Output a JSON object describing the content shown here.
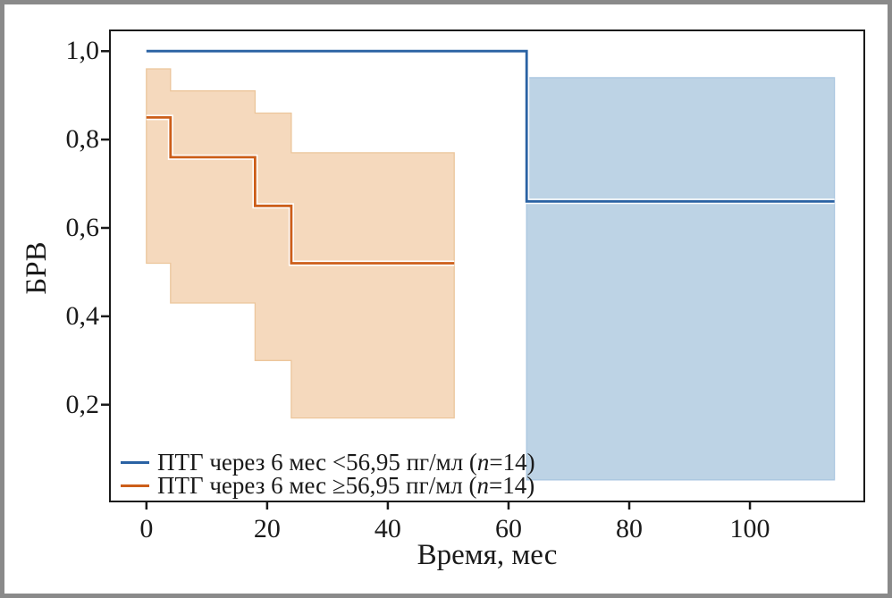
{
  "figure": {
    "frame_color": "#8a8a8a",
    "background": "#ffffff",
    "axes_line_color": "#1a1a1a"
  },
  "chart_data": {
    "type": "line",
    "subtype": "kaplan-meier-step-with-confidence-bands",
    "title": "",
    "xlabel": "Время, мес",
    "ylabel": "БРВ",
    "xlim": [
      -5.9,
      118.8
    ],
    "ylim": [
      -0.017,
      1.045
    ],
    "grid": false,
    "legend_position": "lower-left",
    "xticks": [
      0,
      20,
      40,
      60,
      80,
      100
    ],
    "xtick_labels": [
      "0",
      "20",
      "40",
      "60",
      "80",
      "100"
    ],
    "yticks": [
      0.2,
      0.4,
      0.6,
      0.8,
      1.0
    ],
    "ytick_labels": [
      "0,2",
      "0,4",
      "0,6",
      "0,8",
      "1,0"
    ],
    "series": [
      {
        "name": "ПТГ через 6 мес <56,95 пг/мл (n=14)",
        "n": 14,
        "color": "#2a62a3",
        "band_color": "#bdd3e5",
        "band_edge_color": "#a9c6e0",
        "step_x": [
          0,
          63,
          114
        ],
        "step_y": [
          1.0,
          0.66,
          0.66
        ],
        "band": {
          "x": [
            63,
            114
          ],
          "upper": [
            0.94,
            0.94
          ],
          "lower": [
            0.03,
            0.03
          ]
        }
      },
      {
        "name": "ПТГ через 6 мес ≥56,95 пг/мл (n=14)",
        "n": 14,
        "color": "#cc5e19",
        "band_color": "#f5d9bd",
        "band_edge_color": "#ecc69c",
        "step_x": [
          0,
          4,
          18,
          24,
          51
        ],
        "step_y": [
          0.85,
          0.76,
          0.65,
          0.52,
          0.52
        ],
        "band": {
          "x": [
            0,
            4,
            18,
            24,
            51
          ],
          "upper": [
            0.96,
            0.91,
            0.86,
            0.77,
            0.77
          ],
          "lower": [
            0.52,
            0.43,
            0.3,
            0.17,
            0.17
          ]
        }
      }
    ]
  },
  "legend": {
    "items": [
      {
        "prefix": "ПТГ через 6 мес <56,95 пг/мл (",
        "n": "n",
        "suffix": "=14)",
        "color": "#2a62a3"
      },
      {
        "prefix": "ПТГ через 6 мес ≥56,95 пг/мл (",
        "n": "n",
        "suffix": "=14)",
        "color": "#cc5e19"
      }
    ]
  }
}
